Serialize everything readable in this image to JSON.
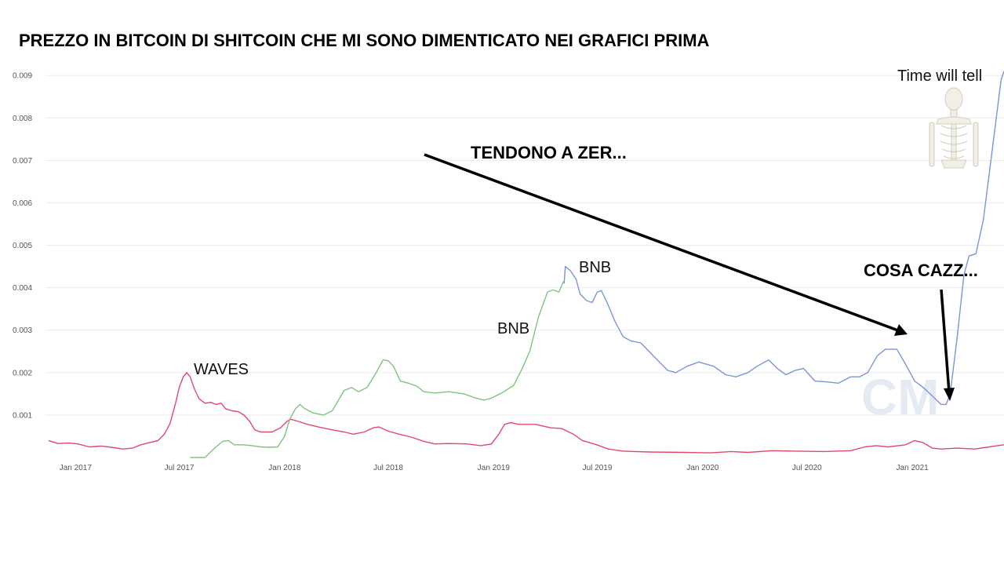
{
  "chart_data": {
    "type": "line",
    "title": "PREZZO IN BITCOIN DI SHITCOIN CHE MI SONO DIMENTICATO NEI GRAFICI PRIMA",
    "x_ticks": [
      "Jan 2017",
      "Jul 2017",
      "Jan 2018",
      "Jul 2018",
      "Jan 2019",
      "Jul 2019",
      "Jan 2020",
      "Jul 2020",
      "Jan 2021"
    ],
    "y_ticks": [
      "0.001",
      "0.002",
      "0.003",
      "0.004",
      "0.005",
      "0.006",
      "0.007",
      "0.008",
      "0.009"
    ],
    "xlim": [
      "2016-11-15",
      "2021-06-10"
    ],
    "ylim": [
      0,
      0.0093
    ],
    "grid": true,
    "series": [
      {
        "id": "waves",
        "color": "#e04a6a",
        "points": [
          [
            "2016-11-15",
            0.0004
          ],
          [
            "2016-12-01",
            0.00033
          ],
          [
            "2016-12-20",
            0.00034
          ],
          [
            "2017-01-05",
            0.00032
          ],
          [
            "2017-01-25",
            0.00025
          ],
          [
            "2017-02-15",
            0.00027
          ],
          [
            "2017-03-05",
            0.00024
          ],
          [
            "2017-03-25",
            0.0002
          ],
          [
            "2017-04-10",
            0.00022
          ],
          [
            "2017-04-25",
            0.0003
          ],
          [
            "2017-05-10",
            0.00035
          ],
          [
            "2017-05-25",
            0.0004
          ],
          [
            "2017-06-05",
            0.00055
          ],
          [
            "2017-06-15",
            0.0008
          ],
          [
            "2017-06-25",
            0.0013
          ],
          [
            "2017-07-01",
            0.00165
          ],
          [
            "2017-07-08",
            0.0019
          ],
          [
            "2017-07-14",
            0.002
          ],
          [
            "2017-07-20",
            0.0019
          ],
          [
            "2017-07-28",
            0.0016
          ],
          [
            "2017-08-05",
            0.00138
          ],
          [
            "2017-08-15",
            0.00128
          ],
          [
            "2017-08-25",
            0.0013
          ],
          [
            "2017-09-03",
            0.00125
          ],
          [
            "2017-09-12",
            0.00128
          ],
          [
            "2017-09-20",
            0.00115
          ],
          [
            "2017-10-01",
            0.0011
          ],
          [
            "2017-10-12",
            0.00108
          ],
          [
            "2017-10-22",
            0.001
          ],
          [
            "2017-11-01",
            0.00085
          ],
          [
            "2017-11-10",
            0.00065
          ],
          [
            "2017-11-20",
            0.0006
          ],
          [
            "2017-12-10",
            0.0006
          ],
          [
            "2017-12-25",
            0.0007
          ],
          [
            "2018-01-05",
            0.00085
          ],
          [
            "2018-01-12",
            0.0009
          ],
          [
            "2018-01-25",
            0.00085
          ],
          [
            "2018-02-10",
            0.00078
          ],
          [
            "2018-03-01",
            0.00072
          ],
          [
            "2018-03-25",
            0.00065
          ],
          [
            "2018-04-15",
            0.0006
          ],
          [
            "2018-05-01",
            0.00055
          ],
          [
            "2018-05-20",
            0.0006
          ],
          [
            "2018-06-05",
            0.0007
          ],
          [
            "2018-06-15",
            0.00072
          ],
          [
            "2018-07-01",
            0.00062
          ],
          [
            "2018-07-20",
            0.00055
          ],
          [
            "2018-08-10",
            0.00048
          ],
          [
            "2018-09-01",
            0.00038
          ],
          [
            "2018-09-20",
            0.00032
          ],
          [
            "2018-10-15",
            0.00033
          ],
          [
            "2018-11-15",
            0.00032
          ],
          [
            "2018-12-10",
            0.00028
          ],
          [
            "2018-12-28",
            0.00032
          ],
          [
            "2019-01-10",
            0.00055
          ],
          [
            "2019-01-20",
            0.00078
          ],
          [
            "2019-01-30",
            0.00082
          ],
          [
            "2019-02-15",
            0.00078
          ],
          [
            "2019-03-15",
            0.00078
          ],
          [
            "2019-04-10",
            0.0007
          ],
          [
            "2019-04-30",
            0.00068
          ],
          [
            "2019-05-20",
            0.00055
          ],
          [
            "2019-06-05",
            0.0004
          ],
          [
            "2019-06-30",
            0.0003
          ],
          [
            "2019-07-20",
            0.0002
          ],
          [
            "2019-08-15",
            0.00015
          ],
          [
            "2019-09-30",
            0.00013
          ],
          [
            "2019-12-01",
            0.00012
          ],
          [
            "2020-01-15",
            0.00011
          ],
          [
            "2020-02-20",
            0.00014
          ],
          [
            "2020-03-20",
            0.00012
          ],
          [
            "2020-05-01",
            0.00016
          ],
          [
            "2020-06-15",
            0.00015
          ],
          [
            "2020-08-01",
            0.00014
          ],
          [
            "2020-09-15",
            0.00016
          ],
          [
            "2020-10-10",
            0.00025
          ],
          [
            "2020-10-30",
            0.00028
          ],
          [
            "2020-11-20",
            0.00025
          ],
          [
            "2020-12-20",
            0.0003
          ],
          [
            "2021-01-05",
            0.0004
          ],
          [
            "2021-01-20",
            0.00035
          ],
          [
            "2021-02-05",
            0.00022
          ],
          [
            "2021-02-20",
            0.0002
          ],
          [
            "2021-03-20",
            0.00022
          ],
          [
            "2021-04-20",
            0.0002
          ],
          [
            "2021-05-15",
            0.00025
          ],
          [
            "2021-06-10",
            0.0003
          ]
        ]
      },
      {
        "id": "bnb",
        "color": "#7ec47e",
        "points": [
          [
            "2017-07-20",
            0.0
          ],
          [
            "2017-08-15",
            0.0
          ],
          [
            "2017-08-30",
            0.0002
          ],
          [
            "2017-09-15",
            0.00038
          ],
          [
            "2017-09-25",
            0.0004
          ],
          [
            "2017-10-05",
            0.0003
          ],
          [
            "2017-10-20",
            0.0003
          ],
          [
            "2017-11-05",
            0.00028
          ],
          [
            "2017-11-20",
            0.00025
          ],
          [
            "2017-12-05",
            0.00024
          ],
          [
            "2017-12-20",
            0.00025
          ],
          [
            "2018-01-01",
            0.0005
          ],
          [
            "2018-01-10",
            0.0009
          ],
          [
            "2018-01-20",
            0.00115
          ],
          [
            "2018-01-28",
            0.00125
          ],
          [
            "2018-02-05",
            0.00115
          ],
          [
            "2018-02-20",
            0.00105
          ],
          [
            "2018-03-10",
            0.001
          ],
          [
            "2018-03-25",
            0.0011
          ],
          [
            "2018-04-05",
            0.00135
          ],
          [
            "2018-04-15",
            0.00158
          ],
          [
            "2018-04-28",
            0.00165
          ],
          [
            "2018-05-10",
            0.00155
          ],
          [
            "2018-05-25",
            0.00165
          ],
          [
            "2018-06-10",
            0.002
          ],
          [
            "2018-06-22",
            0.0023
          ],
          [
            "2018-07-01",
            0.00228
          ],
          [
            "2018-07-10",
            0.00215
          ],
          [
            "2018-07-22",
            0.0018
          ],
          [
            "2018-08-05",
            0.00175
          ],
          [
            "2018-08-20",
            0.00168
          ],
          [
            "2018-09-01",
            0.00155
          ],
          [
            "2018-09-20",
            0.00152
          ],
          [
            "2018-10-15",
            0.00155
          ],
          [
            "2018-11-10",
            0.0015
          ],
          [
            "2018-12-01",
            0.0014
          ],
          [
            "2018-12-15",
            0.00135
          ],
          [
            "2018-12-28",
            0.0014
          ],
          [
            "2019-01-15",
            0.00152
          ],
          [
            "2019-02-05",
            0.0017
          ],
          [
            "2019-02-20",
            0.0021
          ],
          [
            "2019-03-05",
            0.0025
          ],
          [
            "2019-03-20",
            0.0033
          ],
          [
            "2019-04-05",
            0.0039
          ],
          [
            "2019-04-15",
            0.00395
          ],
          [
            "2019-04-25",
            0.0039
          ],
          [
            "2019-05-03",
            0.00415
          ]
        ]
      },
      {
        "id": "bnb-blue",
        "color": "#7b95d6",
        "points": [
          [
            "2019-05-04",
            0.0041
          ],
          [
            "2019-05-06",
            0.0045
          ],
          [
            "2019-05-15",
            0.0044
          ],
          [
            "2019-05-25",
            0.0042
          ],
          [
            "2019-06-01",
            0.00385
          ],
          [
            "2019-06-12",
            0.0037
          ],
          [
            "2019-06-22",
            0.00365
          ],
          [
            "2019-07-01",
            0.0039
          ],
          [
            "2019-07-08",
            0.00393
          ],
          [
            "2019-07-18",
            0.00365
          ],
          [
            "2019-08-01",
            0.0032
          ],
          [
            "2019-08-15",
            0.00285
          ],
          [
            "2019-08-28",
            0.00275
          ],
          [
            "2019-09-15",
            0.0027
          ],
          [
            "2019-10-10",
            0.00235
          ],
          [
            "2019-11-01",
            0.00205
          ],
          [
            "2019-11-15",
            0.002
          ],
          [
            "2019-12-05",
            0.00215
          ],
          [
            "2019-12-25",
            0.00225
          ],
          [
            "2020-01-20",
            0.00215
          ],
          [
            "2020-02-10",
            0.00195
          ],
          [
            "2020-02-28",
            0.0019
          ],
          [
            "2020-03-20",
            0.002
          ],
          [
            "2020-04-05",
            0.00215
          ],
          [
            "2020-04-25",
            0.0023
          ],
          [
            "2020-05-10",
            0.0021
          ],
          [
            "2020-05-25",
            0.00195
          ],
          [
            "2020-06-10",
            0.00205
          ],
          [
            "2020-06-25",
            0.0021
          ],
          [
            "2020-07-15",
            0.0018
          ],
          [
            "2020-08-05",
            0.00178
          ],
          [
            "2020-08-25",
            0.00175
          ],
          [
            "2020-09-15",
            0.0019
          ],
          [
            "2020-10-01",
            0.0019
          ],
          [
            "2020-10-15",
            0.002
          ],
          [
            "2020-11-01",
            0.0024
          ],
          [
            "2020-11-15",
            0.00255
          ],
          [
            "2020-12-05",
            0.00255
          ],
          [
            "2020-12-20",
            0.0022
          ],
          [
            "2021-01-05",
            0.0018
          ],
          [
            "2021-01-20",
            0.00165
          ],
          [
            "2021-02-05",
            0.00145
          ],
          [
            "2021-02-20",
            0.00125
          ],
          [
            "2021-03-01",
            0.00125
          ],
          [
            "2021-03-08",
            0.0015
          ],
          [
            "2021-03-20",
            0.0028
          ],
          [
            "2021-04-01",
            0.0043
          ],
          [
            "2021-04-10",
            0.00475
          ],
          [
            "2021-04-22",
            0.0048
          ],
          [
            "2021-05-05",
            0.0056
          ],
          [
            "2021-05-20",
            0.0072
          ],
          [
            "2021-06-05",
            0.0089
          ],
          [
            "2021-06-10",
            0.0091
          ]
        ]
      }
    ]
  },
  "annotations": {
    "waves": "WAVES",
    "bnb_green": "BNB",
    "bnb_blue": "BNB",
    "tendono": "TENDONO A ZER...",
    "cosa": "COSA CAZZ...",
    "time": "Time will tell",
    "watermark": "CM"
  }
}
